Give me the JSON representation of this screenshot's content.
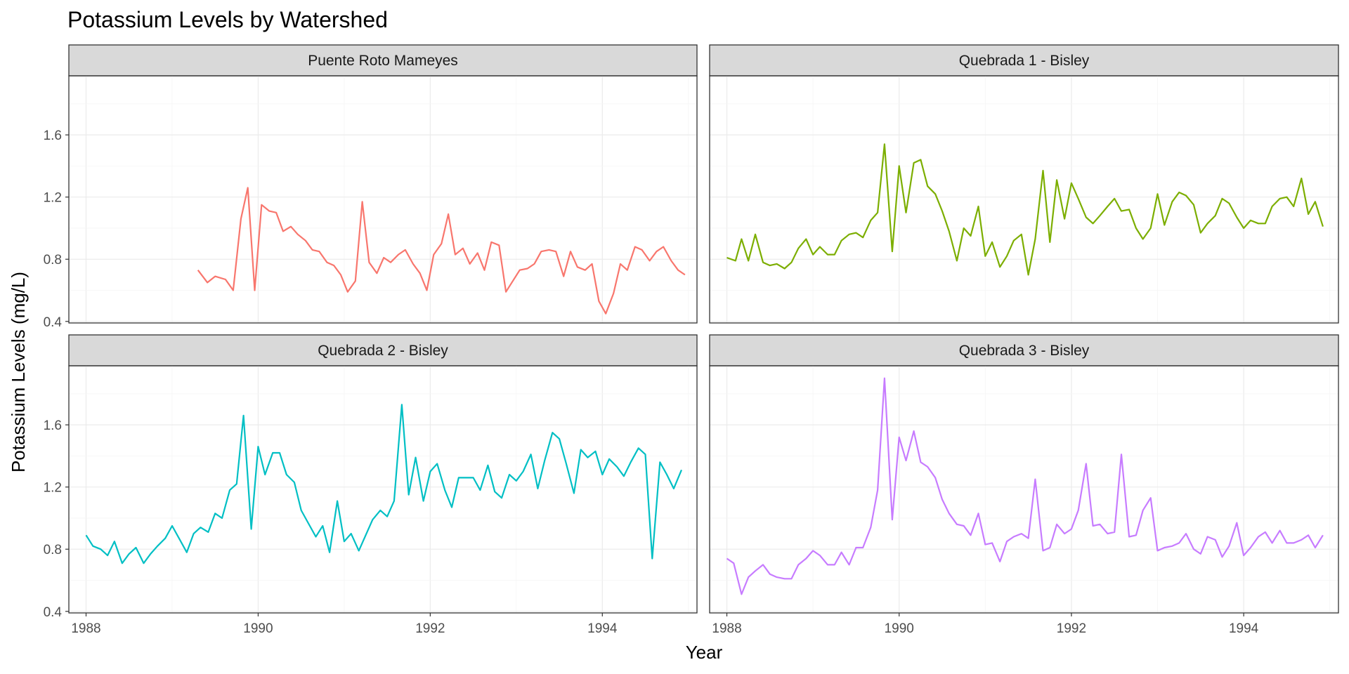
{
  "chart_data": {
    "type": "line",
    "title": "Potassium Levels by Watershed",
    "xlabel": "Year",
    "ylabel": "Potassium Levels (mg/L)",
    "xlim": [
      1987.8,
      1995.1
    ],
    "ylim": [
      0.39,
      1.98
    ],
    "xticks": [
      1988,
      1990,
      1992,
      1994
    ],
    "yticks": [
      0.4,
      0.8,
      1.2,
      1.6
    ],
    "ytick_labels": [
      "0.4",
      "0.8",
      "1.2",
      "1.6"
    ],
    "grid": true,
    "facet_layout": "2x2",
    "panels": [
      {
        "name": "Puente Roto Mameyes",
        "color": "#F8766D",
        "x": [
          1989.3,
          1989.41,
          1989.5,
          1989.62,
          1989.71,
          1989.8,
          1989.88,
          1989.96,
          1990.04,
          1990.13,
          1990.21,
          1990.29,
          1990.38,
          1990.46,
          1990.55,
          1990.63,
          1990.71,
          1990.8,
          1990.88,
          1990.96,
          1991.04,
          1991.13,
          1991.21,
          1991.29,
          1991.38,
          1991.46,
          1991.54,
          1991.63,
          1991.71,
          1991.8,
          1991.88,
          1991.96,
          1992.04,
          1992.13,
          1992.21,
          1992.29,
          1992.38,
          1992.46,
          1992.55,
          1992.63,
          1992.71,
          1992.8,
          1992.88,
          1992.96,
          1993.04,
          1993.13,
          1993.21,
          1993.29,
          1993.38,
          1993.46,
          1993.55,
          1993.63,
          1993.71,
          1993.8,
          1993.88,
          1993.96,
          1994.04,
          1994.13,
          1994.21,
          1994.29,
          1994.38,
          1994.46,
          1994.55,
          1994.63,
          1994.71,
          1994.8,
          1994.88,
          1994.96
        ],
        "y": [
          0.73,
          0.65,
          0.69,
          0.67,
          0.6,
          1.06,
          1.26,
          0.6,
          1.15,
          1.11,
          1.1,
          0.98,
          1.01,
          0.96,
          0.92,
          0.86,
          0.85,
          0.78,
          0.76,
          0.7,
          0.59,
          0.66,
          1.17,
          0.78,
          0.71,
          0.81,
          0.78,
          0.83,
          0.86,
          0.77,
          0.71,
          0.6,
          0.83,
          0.9,
          1.09,
          0.83,
          0.87,
          0.77,
          0.84,
          0.73,
          0.91,
          0.89,
          0.59,
          0.66,
          0.73,
          0.74,
          0.77,
          0.85,
          0.86,
          0.85,
          0.69,
          0.85,
          0.75,
          0.73,
          0.77,
          0.53,
          0.45,
          0.58,
          0.77,
          0.73,
          0.88,
          0.86,
          0.79,
          0.85,
          0.88,
          0.79,
          0.73,
          0.7
        ]
      },
      {
        "name": "Quebrada 1 - Bisley",
        "color": "#7CAE00",
        "x": [
          1988.0,
          1988.1,
          1988.17,
          1988.25,
          1988.33,
          1988.42,
          1988.5,
          1988.58,
          1988.67,
          1988.75,
          1988.83,
          1988.92,
          1989.0,
          1989.08,
          1989.17,
          1989.25,
          1989.33,
          1989.42,
          1989.5,
          1989.58,
          1989.67,
          1989.75,
          1989.83,
          1989.92,
          1990.0,
          1990.08,
          1990.17,
          1990.25,
          1990.33,
          1990.42,
          1990.5,
          1990.58,
          1990.67,
          1990.75,
          1990.83,
          1990.92,
          1991.0,
          1991.08,
          1991.17,
          1991.25,
          1991.33,
          1991.42,
          1991.5,
          1991.58,
          1991.67,
          1991.75,
          1991.83,
          1991.92,
          1992.0,
          1992.08,
          1992.17,
          1992.25,
          1992.33,
          1992.42,
          1992.5,
          1992.58,
          1992.67,
          1992.75,
          1992.83,
          1992.92,
          1993.0,
          1993.08,
          1993.17,
          1993.25,
          1993.33,
          1993.42,
          1993.5,
          1993.58,
          1993.67,
          1993.75,
          1993.83,
          1993.92,
          1994.0,
          1994.08,
          1994.17,
          1994.25,
          1994.33,
          1994.42,
          1994.5,
          1994.58,
          1994.67,
          1994.75,
          1994.83,
          1994.92
        ],
        "y": [
          0.81,
          0.79,
          0.93,
          0.79,
          0.96,
          0.78,
          0.76,
          0.77,
          0.74,
          0.78,
          0.87,
          0.93,
          0.83,
          0.88,
          0.83,
          0.83,
          0.92,
          0.96,
          0.97,
          0.94,
          1.05,
          1.1,
          1.54,
          0.85,
          1.4,
          1.1,
          1.42,
          1.44,
          1.27,
          1.22,
          1.11,
          0.98,
          0.79,
          1.0,
          0.95,
          1.14,
          0.82,
          0.91,
          0.75,
          0.82,
          0.92,
          0.96,
          0.7,
          0.93,
          1.37,
          0.91,
          1.31,
          1.06,
          1.29,
          1.19,
          1.07,
          1.03,
          1.08,
          1.14,
          1.19,
          1.11,
          1.12,
          1.0,
          0.93,
          1.0,
          1.22,
          1.02,
          1.17,
          1.23,
          1.21,
          1.15,
          0.97,
          1.03,
          1.08,
          1.19,
          1.16,
          1.07,
          1.0,
          1.05,
          1.03,
          1.03,
          1.14,
          1.19,
          1.2,
          1.14,
          1.32,
          1.09,
          1.17,
          1.01
        ]
      },
      {
        "name": "Quebrada 2 - Bisley",
        "color": "#00BFC4",
        "x": [
          1988.0,
          1988.08,
          1988.17,
          1988.25,
          1988.33,
          1988.42,
          1988.5,
          1988.58,
          1988.67,
          1988.75,
          1988.83,
          1988.92,
          1989.0,
          1989.08,
          1989.17,
          1989.25,
          1989.33,
          1989.42,
          1989.5,
          1989.58,
          1989.67,
          1989.75,
          1989.83,
          1989.92,
          1990.0,
          1990.08,
          1990.17,
          1990.25,
          1990.33,
          1990.42,
          1990.5,
          1990.58,
          1990.67,
          1990.75,
          1990.83,
          1990.92,
          1991.0,
          1991.08,
          1991.17,
          1991.25,
          1991.33,
          1991.42,
          1991.5,
          1991.58,
          1991.67,
          1991.75,
          1991.83,
          1991.92,
          1992.0,
          1992.08,
          1992.17,
          1992.25,
          1992.33,
          1992.42,
          1992.5,
          1992.58,
          1992.67,
          1992.75,
          1992.83,
          1992.92,
          1993.0,
          1993.08,
          1993.17,
          1993.25,
          1993.33,
          1993.42,
          1993.5,
          1993.58,
          1993.67,
          1993.75,
          1993.83,
          1993.92,
          1994.0,
          1994.08,
          1994.17,
          1994.25,
          1994.33,
          1994.42,
          1994.5,
          1994.58,
          1994.67,
          1994.75,
          1994.83,
          1994.92
        ],
        "y": [
          0.89,
          0.82,
          0.8,
          0.76,
          0.85,
          0.71,
          0.77,
          0.81,
          0.71,
          0.77,
          0.82,
          0.87,
          0.95,
          0.87,
          0.78,
          0.9,
          0.94,
          0.91,
          1.03,
          1.0,
          1.18,
          1.22,
          1.66,
          0.93,
          1.46,
          1.28,
          1.42,
          1.42,
          1.28,
          1.23,
          1.05,
          0.97,
          0.88,
          0.95,
          0.78,
          1.11,
          0.85,
          0.9,
          0.79,
          0.89,
          0.99,
          1.05,
          1.01,
          1.11,
          1.73,
          1.15,
          1.39,
          1.11,
          1.3,
          1.35,
          1.18,
          1.07,
          1.26,
          1.26,
          1.26,
          1.18,
          1.34,
          1.17,
          1.13,
          1.28,
          1.24,
          1.3,
          1.41,
          1.19,
          1.37,
          1.55,
          1.51,
          1.35,
          1.16,
          1.44,
          1.39,
          1.43,
          1.28,
          1.38,
          1.33,
          1.27,
          1.36,
          1.45,
          1.41,
          0.74,
          1.36,
          1.28,
          1.19,
          1.31
        ]
      },
      {
        "name": "Quebrada 3 - Bisley",
        "color": "#C77CFF",
        "x": [
          1988.0,
          1988.08,
          1988.17,
          1988.25,
          1988.33,
          1988.42,
          1988.5,
          1988.58,
          1988.67,
          1988.75,
          1988.83,
          1988.92,
          1989.0,
          1989.08,
          1989.17,
          1989.25,
          1989.33,
          1989.42,
          1989.5,
          1989.58,
          1989.67,
          1989.75,
          1989.83,
          1989.92,
          1990.0,
          1990.08,
          1990.17,
          1990.25,
          1990.33,
          1990.42,
          1990.5,
          1990.58,
          1990.67,
          1990.75,
          1990.83,
          1990.92,
          1991.0,
          1991.08,
          1991.17,
          1991.25,
          1991.33,
          1991.42,
          1991.5,
          1991.58,
          1991.67,
          1991.75,
          1991.83,
          1991.92,
          1992.0,
          1992.08,
          1992.17,
          1992.25,
          1992.33,
          1992.42,
          1992.5,
          1992.58,
          1992.67,
          1992.75,
          1992.83,
          1992.92,
          1993.0,
          1993.08,
          1993.17,
          1993.25,
          1993.33,
          1993.42,
          1993.5,
          1993.58,
          1993.67,
          1993.75,
          1993.83,
          1993.92,
          1994.0,
          1994.08,
          1994.17,
          1994.25,
          1994.33,
          1994.42,
          1994.5,
          1994.58,
          1994.67,
          1994.75,
          1994.83,
          1994.92
        ],
        "y": [
          0.74,
          0.71,
          0.51,
          0.62,
          0.66,
          0.7,
          0.64,
          0.62,
          0.61,
          0.61,
          0.7,
          0.74,
          0.79,
          0.76,
          0.7,
          0.7,
          0.78,
          0.7,
          0.81,
          0.81,
          0.94,
          1.18,
          1.9,
          0.99,
          1.52,
          1.37,
          1.56,
          1.36,
          1.33,
          1.26,
          1.12,
          1.03,
          0.96,
          0.95,
          0.89,
          1.03,
          0.83,
          0.84,
          0.72,
          0.85,
          0.88,
          0.9,
          0.87,
          1.25,
          0.79,
          0.81,
          0.96,
          0.9,
          0.93,
          1.05,
          1.35,
          0.95,
          0.96,
          0.9,
          0.91,
          1.41,
          0.88,
          0.89,
          1.05,
          1.13,
          0.79,
          0.81,
          0.82,
          0.84,
          0.9,
          0.8,
          0.77,
          0.88,
          0.86,
          0.75,
          0.82,
          0.97,
          0.76,
          0.81,
          0.88,
          0.91,
          0.84,
          0.92,
          0.84,
          0.84,
          0.86,
          0.89,
          0.81,
          0.89
        ]
      }
    ]
  }
}
